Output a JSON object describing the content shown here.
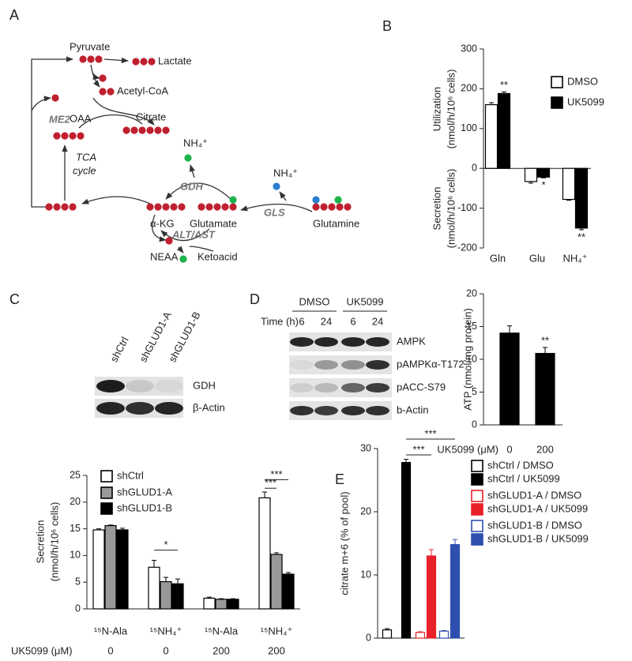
{
  "panel_labels": [
    "A",
    "B",
    "C",
    "D",
    "E"
  ],
  "diagram": {
    "labels": [
      "Pyruvate",
      "Lactate",
      "Acetyl-CoA",
      "Citrate",
      "OAA",
      "TCA",
      "cycle",
      "ME2",
      "NH₄⁺",
      "GDH",
      "NH₄⁺",
      "α-KG",
      "Glutamate",
      "GLS",
      "Glutamine",
      "ALT/AST",
      "NEAA",
      "Ketoacid"
    ]
  },
  "blot_c": {
    "lanes": [
      "shCtrl",
      "shGLUD1-A",
      "shGLUD1-B"
    ],
    "proteins": [
      "GDH",
      "β-Actin"
    ]
  },
  "blot_d": {
    "groups": [
      "DMSO",
      "UK5099"
    ],
    "time_label": "Time (h)",
    "times": [
      "6",
      "24",
      "6",
      "24"
    ],
    "proteins": [
      "AMPK",
      "pAMPKα-T172",
      "pACC-S79",
      "b-Actin"
    ]
  },
  "chart_data": [
    {
      "type": "bar",
      "ylabel": [
        "Utilization",
        "(nmol/h/10⁶ cells)"
      ],
      "ylabel2": [
        "Secretion",
        "(nmol/h/10⁶ cells)"
      ],
      "categories": [
        "Gln",
        "Glu",
        "NH₄⁺"
      ],
      "series": [
        {
          "name": "DMSO",
          "color": "#ffffff",
          "values": [
            160,
            -33,
            -78
          ],
          "errors": [
            5,
            4,
            2
          ]
        },
        {
          "name": "UK5099",
          "color": "#000000",
          "values": [
            188,
            -22,
            -150
          ],
          "errors": [
            4,
            2,
            4
          ]
        }
      ],
      "ylim": [
        -200,
        300
      ],
      "yticks": [
        -200,
        -100,
        0,
        100,
        200,
        300
      ],
      "annotations": [
        "**",
        "*",
        "**"
      ]
    },
    {
      "type": "bar",
      "ylabel": [
        "Secretion",
        "(nmol/h/10⁶ cells)"
      ],
      "categories": [
        "¹⁵N-Ala",
        "¹⁵NH₄⁺",
        "¹⁵N-Ala",
        "¹⁵NH₄⁺"
      ],
      "treatment_label": "UK5099 (μM)",
      "treatments": [
        "0",
        "0",
        "200",
        "200"
      ],
      "series": [
        {
          "name": "shCtrl",
          "color": "#ffffff",
          "values": [
            14.8,
            7.8,
            2.0,
            20.8
          ],
          "errors": [
            0.2,
            1.3,
            0.2,
            1.1
          ]
        },
        {
          "name": "shGLUD1-A",
          "color": "#999999",
          "values": [
            15.6,
            5.1,
            1.8,
            10.2
          ],
          "errors": [
            0.1,
            0.8,
            0.1,
            0.3
          ]
        },
        {
          "name": "shGLUD1-B",
          "color": "#000000",
          "values": [
            14.8,
            4.7,
            1.8,
            6.5
          ],
          "errors": [
            0.3,
            0.9,
            0.1,
            0.3
          ]
        }
      ],
      "ylim": [
        0,
        25
      ],
      "yticks": [
        0,
        5,
        10,
        15,
        20,
        25
      ],
      "annotations": [
        "*",
        "***",
        "***"
      ]
    },
    {
      "type": "bar",
      "ylabel": [
        "ATP (nmol/mg protein)"
      ],
      "xlabel": "UK5099 (μM)",
      "categories": [
        "0",
        "200"
      ],
      "values": [
        14,
        10.9
      ],
      "errors": [
        1.1,
        0.9
      ],
      "color": "#000000",
      "ylim": [
        0,
        20
      ],
      "yticks": [
        0,
        5,
        10,
        15,
        20
      ],
      "annotations": [
        "**"
      ]
    },
    {
      "type": "bar",
      "ylabel": [
        "citrate m+6 (% of pool)"
      ],
      "categories": [
        "shCtrl / DMSO",
        "shCtrl / UK5099",
        "shGLUD1-A / DMSO",
        "shGLUD1-A / UK5099",
        "shGLUD1-B / DMSO",
        "shGLUD1-B / UK5099"
      ],
      "values": [
        1.3,
        27.8,
        0.9,
        13,
        1.1,
        14.8
      ],
      "errors": [
        0.2,
        0.5,
        0.1,
        1.0,
        0.1,
        0.8
      ],
      "colors": [
        "#ffffff",
        "#000000",
        "#ffffff",
        "#e8202a",
        "#ffffff",
        "#2f4fb0"
      ],
      "edgecolors": [
        "#000000",
        "#000000",
        "#e8202a",
        "#e8202a",
        "#2f4fb0",
        "#2f4fb0"
      ],
      "ylim": [
        0,
        30
      ],
      "yticks": [
        0,
        10,
        20,
        30
      ],
      "annotations": [
        "***",
        "***"
      ]
    }
  ]
}
